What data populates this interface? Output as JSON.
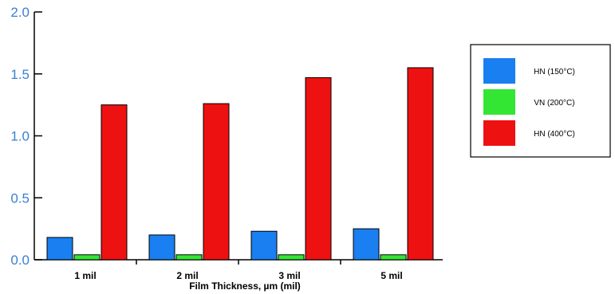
{
  "chart_data": {
    "type": "bar",
    "title": "",
    "xlabel": "Film Thickness, µm (mil)",
    "ylabel": "",
    "categories": [
      "1 mil",
      "2 mil",
      "3 mil",
      "5 mil"
    ],
    "series": [
      {
        "name": "HN (150°C)",
        "color": "#1a7ff0",
        "values": [
          0.18,
          0.2,
          0.23,
          0.25
        ]
      },
      {
        "name": "VN (200°C)",
        "color": "#33e633",
        "values": [
          0.04,
          0.04,
          0.04,
          0.04
        ]
      },
      {
        "name": "HN (400°C)",
        "color": "#ee1111",
        "values": [
          1.25,
          1.26,
          1.47,
          1.55
        ]
      }
    ],
    "ylim": [
      0,
      2.0
    ],
    "yticks": [
      "0.0",
      "0.5",
      "1.0",
      "1.5",
      "2.0"
    ],
    "grid": false,
    "legend_position": "right"
  }
}
